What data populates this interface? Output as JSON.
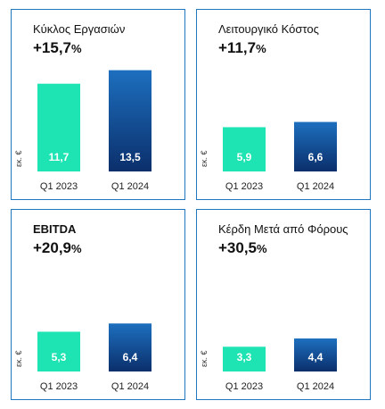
{
  "colors": {
    "border": "#1f77c0",
    "bar_2023": "#1ee3b2",
    "bar_2024_top": "#1d6fbf",
    "bar_2024_bottom": "#0b2f6b"
  },
  "chart_data": [
    {
      "type": "bar",
      "title": "Κύκλος Εργασιών",
      "growth_value": "+15,7",
      "growth_unit": "%",
      "ylabel": "εκ. €",
      "categories": [
        "Q1 2023",
        "Q1 2024"
      ],
      "values": [
        11.7,
        13.5
      ],
      "value_labels": [
        "11,7",
        "13,5"
      ]
    },
    {
      "type": "bar",
      "title": "Λειτουργικό Κόστος",
      "growth_value": "+11,7",
      "growth_unit": "%",
      "ylabel": "εκ. €",
      "categories": [
        "Q1 2023",
        "Q1 2024"
      ],
      "values": [
        5.9,
        6.6
      ],
      "value_labels": [
        "5,9",
        "6,6"
      ]
    },
    {
      "type": "bar",
      "title": "EBITDA",
      "growth_value": "+20,9",
      "growth_unit": "%",
      "ylabel": "εκ. €",
      "categories": [
        "Q1 2023",
        "Q1 2024"
      ],
      "values": [
        5.3,
        6.4
      ],
      "value_labels": [
        "5,3",
        "6,4"
      ]
    },
    {
      "type": "bar",
      "title": "Κέρδη Μετά από Φόρους",
      "growth_value": "+30,5",
      "growth_unit": "%",
      "ylabel": "εκ. €",
      "categories": [
        "Q1 2023",
        "Q1 2024"
      ],
      "values": [
        3.3,
        4.4
      ],
      "value_labels": [
        "3,3",
        "4,4"
      ]
    }
  ]
}
